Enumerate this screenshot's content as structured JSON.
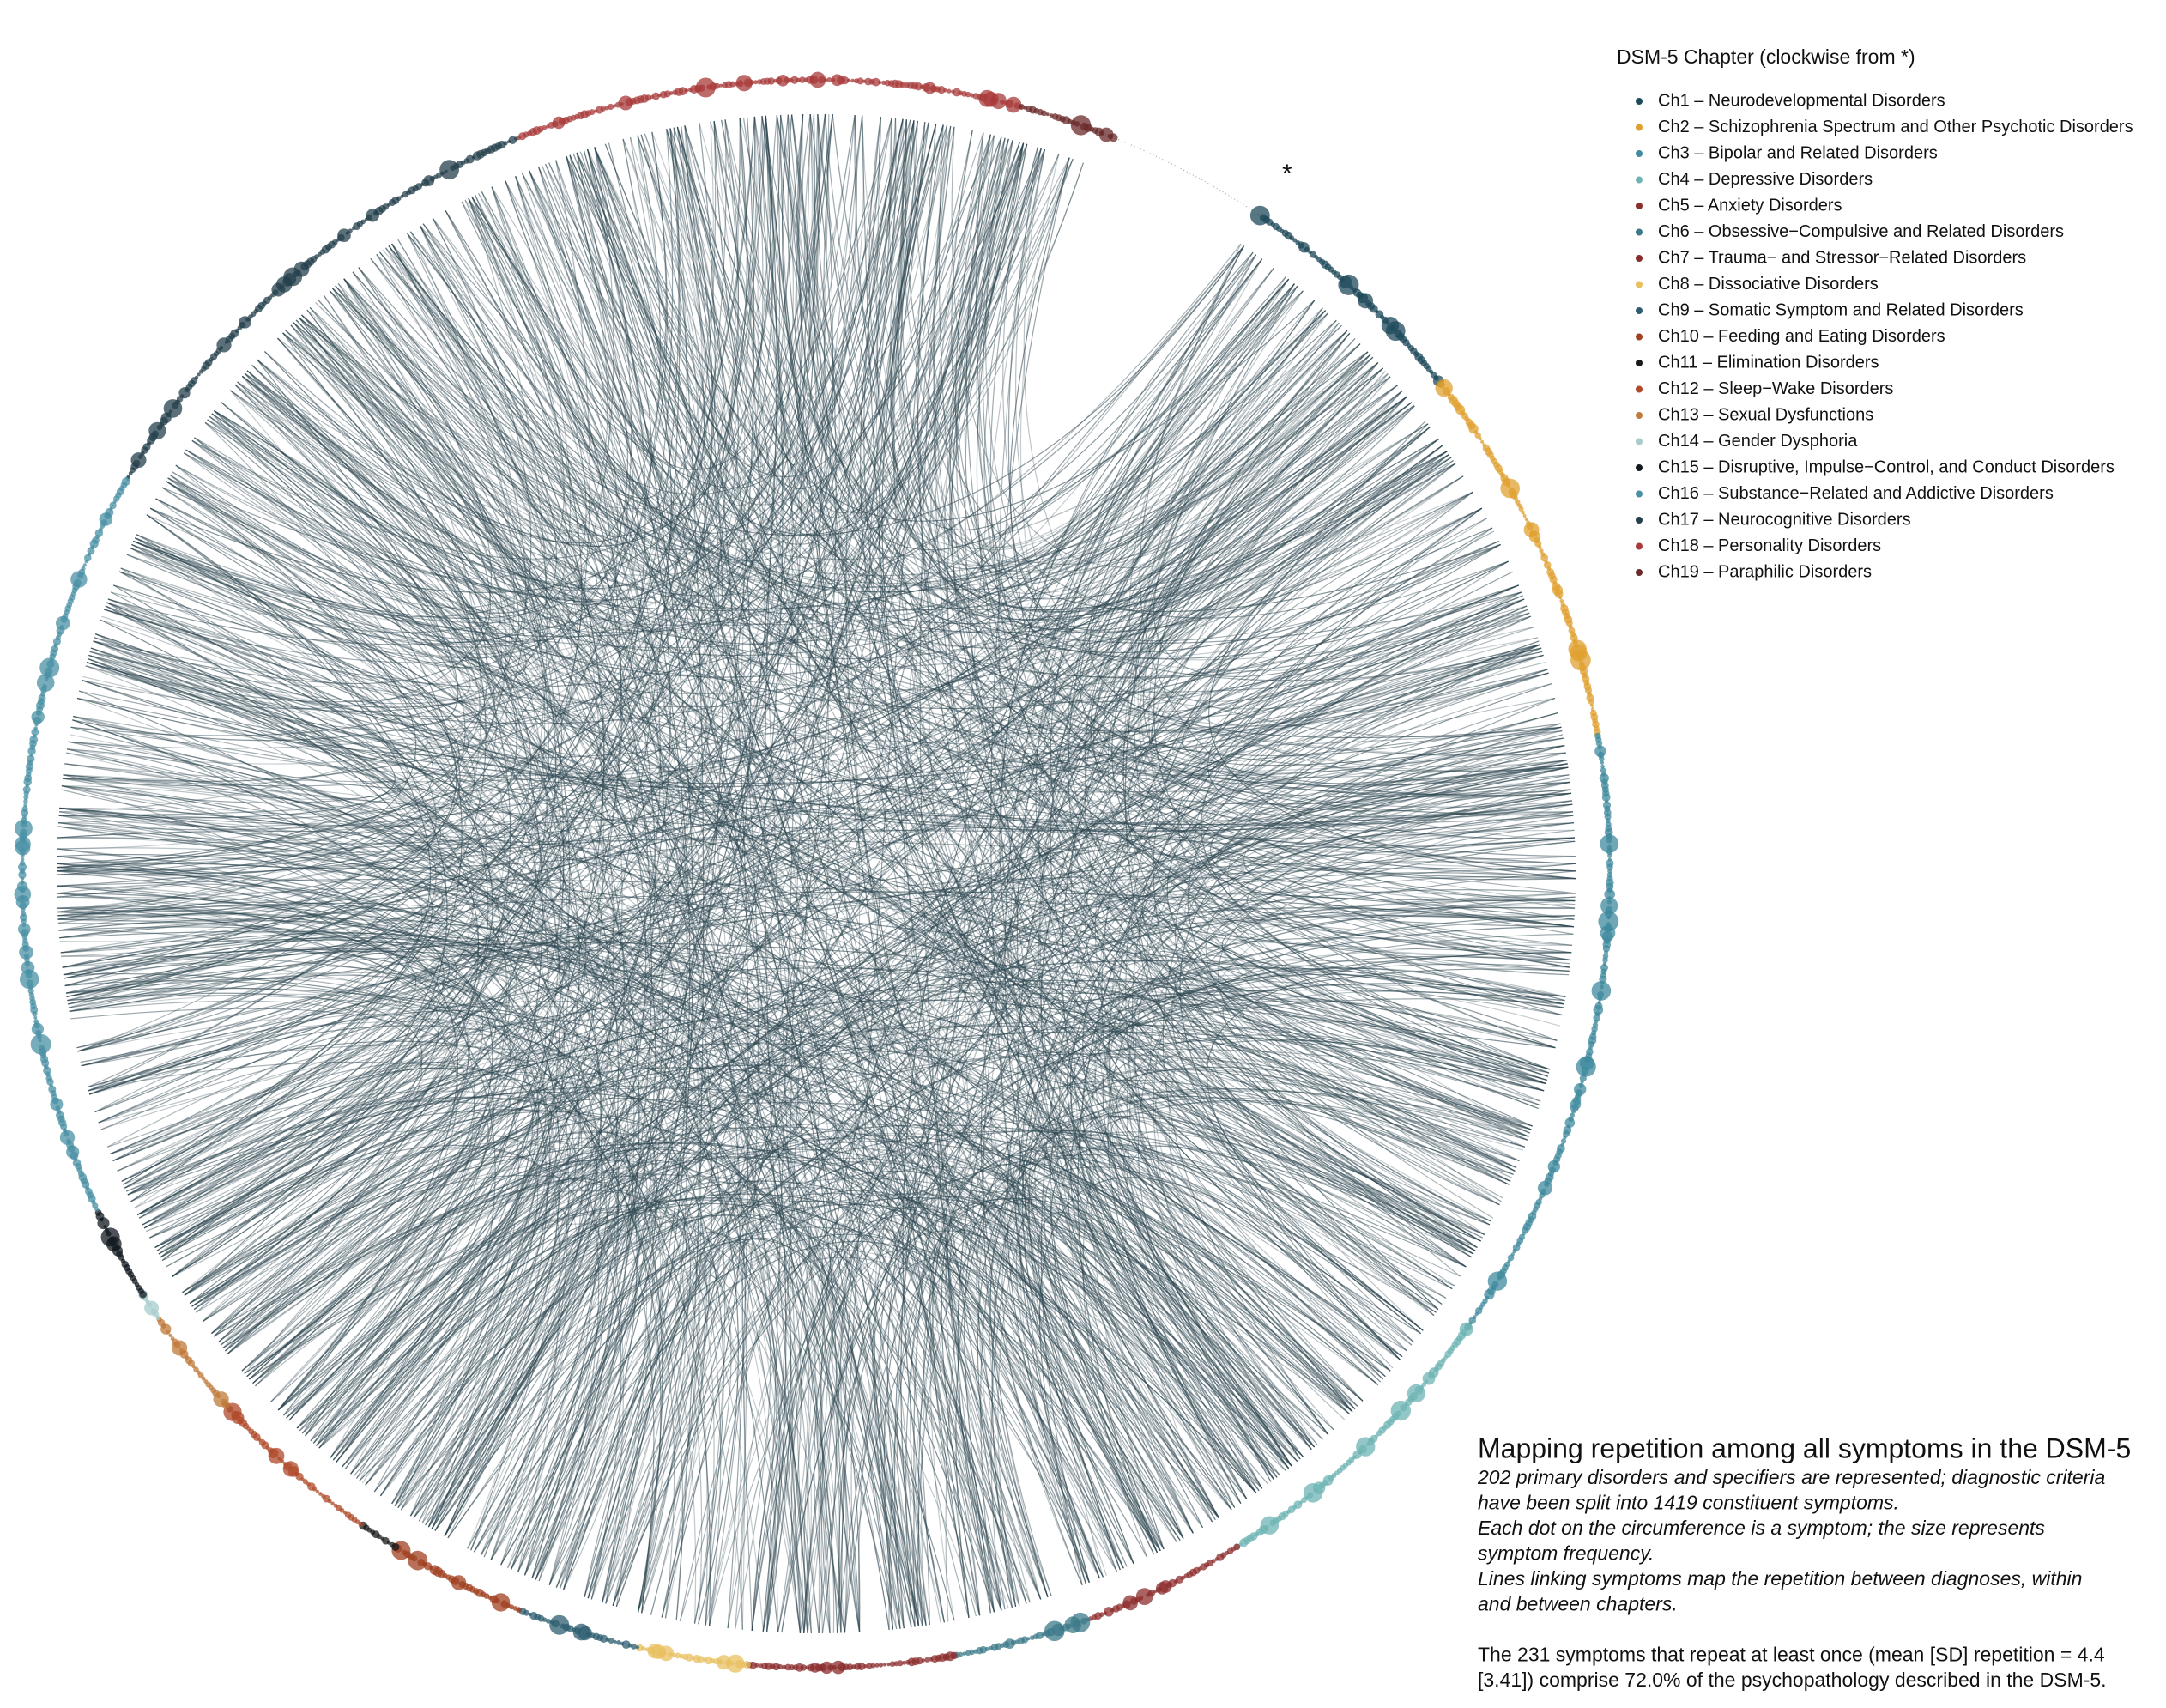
{
  "legend": {
    "title": "DSM-5 Chapter (clockwise from *)",
    "items": [
      {
        "label": "Ch1 – Neurodevelopmental Disorders",
        "color": "#1e4a5a"
      },
      {
        "label": "Ch2 – Schizophrenia Spectrum and Other Psychotic Disorders",
        "color": "#e0a030"
      },
      {
        "label": "Ch3 – Bipolar and Related Disorders",
        "color": "#3f8a9e"
      },
      {
        "label": "Ch4 – Depressive Disorders",
        "color": "#6fb4b4"
      },
      {
        "label": "Ch5 – Anxiety Disorders",
        "color": "#8e2d2d"
      },
      {
        "label": "Ch6 – Obsessive−Compulsive and Related Disorders",
        "color": "#3c7a8a"
      },
      {
        "label": "Ch7 – Trauma− and Stressor−Related Disorders",
        "color": "#8a2a2a"
      },
      {
        "label": "Ch8 – Dissociative Disorders",
        "color": "#e8c060"
      },
      {
        "label": "Ch9 – Somatic Symptom and Related Disorders",
        "color": "#2e5d70"
      },
      {
        "label": "Ch10 – Feeding and Eating Disorders",
        "color": "#a04020"
      },
      {
        "label": "Ch11 – Elimination Disorders",
        "color": "#1a1a1a"
      },
      {
        "label": "Ch12 – Sleep−Wake Disorders",
        "color": "#b04a2a"
      },
      {
        "label": "Ch13 – Sexual Dysfunctions",
        "color": "#c07a3a"
      },
      {
        "label": "Ch14 – Gender Dysphoria",
        "color": "#a8cccc"
      },
      {
        "label": "Ch15 – Disruptive, Impulse−Control, and Conduct Disorders",
        "color": "#111a20"
      },
      {
        "label": "Ch16 – Substance−Related and Addictive Disorders",
        "color": "#4a90a4"
      },
      {
        "label": "Ch17 – Neurocognitive Disorders",
        "color": "#24404c"
      },
      {
        "label": "Ch18 – Personality Disorders",
        "color": "#a83a3a"
      },
      {
        "label": "Ch19 – Paraphilic Disorders",
        "color": "#6a2a2a"
      }
    ]
  },
  "start_marker": "*",
  "caption": {
    "title": "Mapping repetition among all symptoms in the DSM-5",
    "italic_lines": [
      "202 primary disorders and specifiers are represented; diagnostic criteria",
      "have been split into 1419 constituent symptoms.",
      "Each dot on the circumference is a symptom; the size represents",
      "symptom frequency.",
      "Lines linking symptoms map the repetition between diagnoses, within",
      "and between chapters."
    ],
    "summary_lines": [
      "The 231 symptoms that repeat at least once (mean [SD] repetition = 4.4",
      "[3.41]) comprise 72.0% of the psychopathology described in the DSM-5."
    ]
  }
}
